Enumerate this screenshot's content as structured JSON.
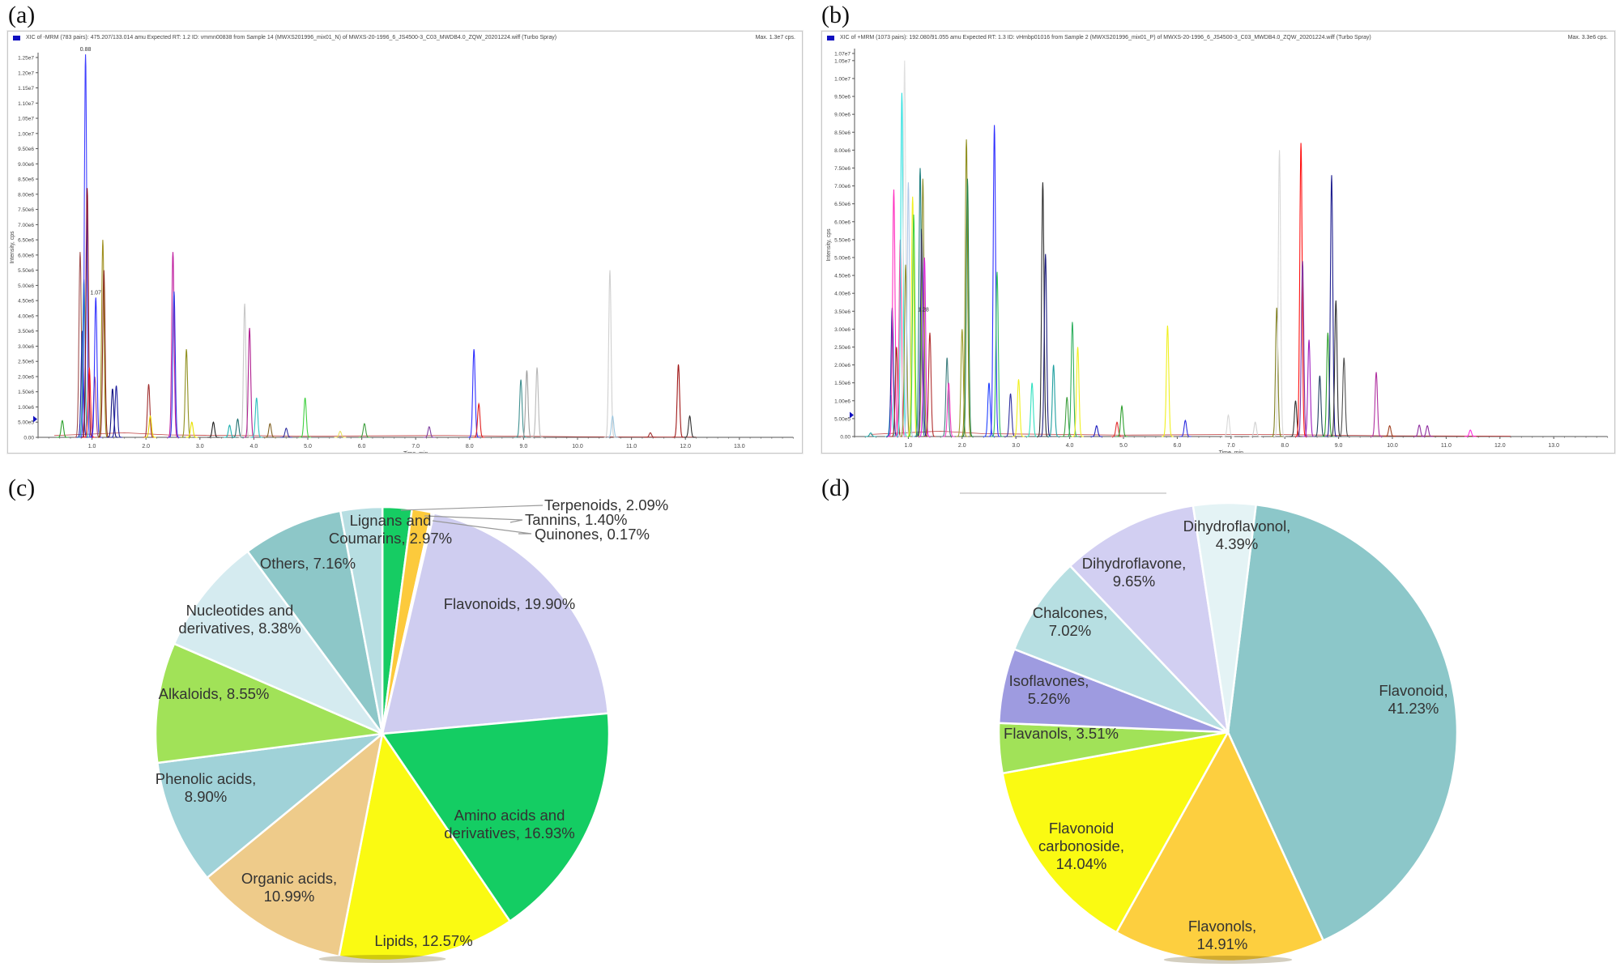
{
  "panel_labels": {
    "a": "(a)",
    "b": "(b)",
    "c": "(c)",
    "d": "(d)"
  },
  "chart_data": [
    {
      "type": "line",
      "panel": "a",
      "header": "XIC of -MRM (783 pairs): 475.207/133.014 amu Expected RT: 1.2 ID: vmmn00838 from Sample 14 (MWXS201996_mix01_N) of MWXS-20-1996_6_JS4500-3_C03_MWDB4.0_ZQW_20201224.wiff (Turbo Spray)",
      "max_label": "Max. 1.3e7 cps.",
      "xlabel": "Time, min",
      "ylabel": "Intensity, cps",
      "xlim": [
        0,
        14
      ],
      "ylim": [
        0,
        12500000
      ],
      "x_ticks": [
        1,
        2,
        3,
        4,
        5,
        6,
        7,
        8,
        9,
        10,
        11,
        12,
        13
      ],
      "x_tick_labels": [
        "1.0",
        "2.0",
        "3.0",
        "4.0",
        "5.0",
        "6.0",
        "7.0",
        "8.0",
        "9.0",
        "10.0",
        "11.0",
        "12.0",
        "13.0"
      ],
      "y_ticks": [
        0,
        500000,
        1000000,
        1500000,
        2000000,
        2500000,
        3000000,
        3500000,
        4000000,
        4500000,
        5000000,
        5500000,
        6000000,
        6500000,
        7000000,
        7500000,
        8000000,
        8500000,
        9000000,
        9500000,
        10000000,
        10500000,
        11000000,
        11500000,
        12000000,
        12500000
      ],
      "y_tick_labels": [
        "0.00",
        "5.00e5",
        "1.00e6",
        "1.50e6",
        "2.00e6",
        "2.50e6",
        "3.00e6",
        "3.50e6",
        "4.00e6",
        "4.50e6",
        "5.00e6",
        "5.50e6",
        "6.00e6",
        "6.50e6",
        "7.00e6",
        "7.50e6",
        "8.00e6",
        "8.50e6",
        "9.00e6",
        "9.50e6",
        "1.00e7",
        "1.05e7",
        "1.10e7",
        "1.15e7",
        "1.20e7",
        "1.25e7"
      ],
      "annotations": [
        {
          "x": 0.88,
          "y": 12600000,
          "text": "0.88"
        },
        {
          "x": 1.07,
          "y": 4600000,
          "text": "1.07"
        }
      ],
      "peaks": [
        {
          "rt": 0.45,
          "y": 550000,
          "color": "#2ca02c"
        },
        {
          "rt": 0.78,
          "y": 6100000,
          "color": "#a05050"
        },
        {
          "rt": 0.82,
          "y": 3500000,
          "color": "#1f1fb0"
        },
        {
          "rt": 0.85,
          "y": 5200000,
          "color": "#20a0a0"
        },
        {
          "rt": 0.88,
          "y": 12600000,
          "color": "#4040ff"
        },
        {
          "rt": 0.91,
          "y": 8200000,
          "color": "#800020"
        },
        {
          "rt": 0.95,
          "y": 2300000,
          "color": "#ff2020"
        },
        {
          "rt": 1.05,
          "y": 2000000,
          "color": "#a04080"
        },
        {
          "rt": 1.07,
          "y": 4600000,
          "color": "#3030ff"
        },
        {
          "rt": 1.2,
          "y": 6500000,
          "color": "#a09020"
        },
        {
          "rt": 1.22,
          "y": 5500000,
          "color": "#8b2a1a"
        },
        {
          "rt": 1.38,
          "y": 1600000,
          "color": "#101080"
        },
        {
          "rt": 1.45,
          "y": 1700000,
          "color": "#2020a0"
        },
        {
          "rt": 2.05,
          "y": 1750000,
          "color": "#a03030"
        },
        {
          "rt": 2.08,
          "y": 700000,
          "color": "#e8d000"
        },
        {
          "rt": 2.5,
          "y": 6100000,
          "color": "#c020a0"
        },
        {
          "rt": 2.52,
          "y": 4800000,
          "color": "#3030e0"
        },
        {
          "rt": 2.75,
          "y": 2900000,
          "color": "#909020"
        },
        {
          "rt": 2.85,
          "y": 500000,
          "color": "#e8e000"
        },
        {
          "rt": 3.25,
          "y": 500000,
          "color": "#202020"
        },
        {
          "rt": 3.55,
          "y": 400000,
          "color": "#20b0b0"
        },
        {
          "rt": 3.7,
          "y": 600000,
          "color": "#207070"
        },
        {
          "rt": 3.83,
          "y": 4400000,
          "color": "#c8c8c8"
        },
        {
          "rt": 3.92,
          "y": 3600000,
          "color": "#b02090"
        },
        {
          "rt": 4.05,
          "y": 1300000,
          "color": "#30c0c0"
        },
        {
          "rt": 4.3,
          "y": 450000,
          "color": "#806020"
        },
        {
          "rt": 4.6,
          "y": 300000,
          "color": "#3030a0"
        },
        {
          "rt": 4.95,
          "y": 1300000,
          "color": "#40d040"
        },
        {
          "rt": 5.6,
          "y": 200000,
          "color": "#e8e060"
        },
        {
          "rt": 6.05,
          "y": 450000,
          "color": "#40a040"
        },
        {
          "rt": 7.25,
          "y": 350000,
          "color": "#8040a0"
        },
        {
          "rt": 8.08,
          "y": 2900000,
          "color": "#3030ff"
        },
        {
          "rt": 8.17,
          "y": 1100000,
          "color": "#e02020"
        },
        {
          "rt": 8.95,
          "y": 1900000,
          "color": "#409090"
        },
        {
          "rt": 9.06,
          "y": 2200000,
          "color": "#a0a0a0"
        },
        {
          "rt": 9.25,
          "y": 2300000,
          "color": "#b8b8b8"
        },
        {
          "rt": 10.6,
          "y": 5500000,
          "color": "#d0d0d0"
        },
        {
          "rt": 10.65,
          "y": 700000,
          "color": "#a0c8e0"
        },
        {
          "rt": 11.35,
          "y": 150000,
          "color": "#a03030"
        },
        {
          "rt": 11.87,
          "y": 2400000,
          "color": "#a01818"
        },
        {
          "rt": 12.08,
          "y": 700000,
          "color": "#303030"
        }
      ]
    },
    {
      "type": "line",
      "panel": "b",
      "header": "XIC of +MRM (1073 pairs): 192.080/91.055 amu Expected RT: 1.3 ID: vHmbp01016 from Sample 2 (MWXS201996_mix01_P) of MWXS-20-1996_6_JS4500-3_C03_MWDB4.0_ZQW_20201224.wiff (Turbo Spray)",
      "max_label": "Max. 3.3e6 cps.",
      "xlabel": "Time, min",
      "ylabel": "Intensity, cps",
      "xlim": [
        0,
        14
      ],
      "ylim": [
        0,
        10700000
      ],
      "x_ticks": [
        1,
        2,
        3,
        4,
        5,
        6,
        7,
        8,
        9,
        10,
        11,
        12,
        13
      ],
      "x_tick_labels": [
        "1.0",
        "2.0",
        "3.0",
        "4.0",
        "5.0",
        "6.0",
        "7.0",
        "8.0",
        "9.0",
        "10.0",
        "11.0",
        "12.0",
        "13.0"
      ],
      "y_ticks": [
        0,
        500000,
        1000000,
        1500000,
        2000000,
        2500000,
        3000000,
        3500000,
        4000000,
        4500000,
        5000000,
        5500000,
        6000000,
        6500000,
        7000000,
        7500000,
        8000000,
        8500000,
        9000000,
        9500000,
        10000000,
        10500000,
        10700000
      ],
      "y_tick_labels": [
        "0.00",
        "5.00e5",
        "1.00e6",
        "1.50e6",
        "2.00e6",
        "2.50e6",
        "3.00e6",
        "3.50e6",
        "4.00e6",
        "4.50e6",
        "5.00e6",
        "5.50e6",
        "6.00e6",
        "6.50e6",
        "7.00e6",
        "7.50e6",
        "8.00e6",
        "8.50e6",
        "9.00e6",
        "9.50e6",
        "1.00e7",
        "1.05e7",
        "1.07e7"
      ],
      "annotations": [
        {
          "x": 1.28,
          "y": 3400000,
          "text": "1.28"
        }
      ],
      "peaks": [
        {
          "rt": 0.3,
          "y": 100000,
          "color": "#20a0a0"
        },
        {
          "rt": 0.68,
          "y": 1150000,
          "color": "#30e0e0"
        },
        {
          "rt": 0.7,
          "y": 3600000,
          "color": "#2020a0"
        },
        {
          "rt": 0.73,
          "y": 6900000,
          "color": "#ff30c0"
        },
        {
          "rt": 0.78,
          "y": 2500000,
          "color": "#a03020"
        },
        {
          "rt": 0.85,
          "y": 5500000,
          "color": "#ff40a0"
        },
        {
          "rt": 0.88,
          "y": 9600000,
          "color": "#30e0e0"
        },
        {
          "rt": 0.93,
          "y": 10500000,
          "color": "#e0e0e0"
        },
        {
          "rt": 0.95,
          "y": 4800000,
          "color": "#909030"
        },
        {
          "rt": 1.0,
          "y": 7100000,
          "color": "#b0c8e8"
        },
        {
          "rt": 1.08,
          "y": 6700000,
          "color": "#f0f020"
        },
        {
          "rt": 1.1,
          "y": 6200000,
          "color": "#40d040"
        },
        {
          "rt": 1.22,
          "y": 7500000,
          "color": "#208080"
        },
        {
          "rt": 1.25,
          "y": 5800000,
          "color": "#101090"
        },
        {
          "rt": 1.27,
          "y": 7200000,
          "color": "#909030"
        },
        {
          "rt": 1.3,
          "y": 5000000,
          "color": "#e020e0"
        },
        {
          "rt": 1.4,
          "y": 2900000,
          "color": "#b03030"
        },
        {
          "rt": 1.72,
          "y": 2200000,
          "color": "#408080"
        },
        {
          "rt": 1.75,
          "y": 1500000,
          "color": "#f040c0"
        },
        {
          "rt": 2.0,
          "y": 3000000,
          "color": "#a0a030"
        },
        {
          "rt": 2.08,
          "y": 8300000,
          "color": "#909020"
        },
        {
          "rt": 2.1,
          "y": 7200000,
          "color": "#208040"
        },
        {
          "rt": 2.5,
          "y": 1500000,
          "color": "#2040ff"
        },
        {
          "rt": 2.6,
          "y": 8700000,
          "color": "#3030ff"
        },
        {
          "rt": 2.65,
          "y": 4600000,
          "color": "#30c060"
        },
        {
          "rt": 2.9,
          "y": 1200000,
          "color": "#3030a0"
        },
        {
          "rt": 3.05,
          "y": 1600000,
          "color": "#f0f020"
        },
        {
          "rt": 3.3,
          "y": 1500000,
          "color": "#30e0c0"
        },
        {
          "rt": 3.5,
          "y": 7100000,
          "color": "#303030"
        },
        {
          "rt": 3.55,
          "y": 5100000,
          "color": "#202080"
        },
        {
          "rt": 3.7,
          "y": 2000000,
          "color": "#20a0a0"
        },
        {
          "rt": 3.95,
          "y": 1100000,
          "color": "#40a040"
        },
        {
          "rt": 4.05,
          "y": 3200000,
          "color": "#30b060"
        },
        {
          "rt": 4.15,
          "y": 2500000,
          "color": "#f0f020"
        },
        {
          "rt": 4.5,
          "y": 300000,
          "color": "#2020c0"
        },
        {
          "rt": 4.88,
          "y": 400000,
          "color": "#e03030"
        },
        {
          "rt": 4.97,
          "y": 850000,
          "color": "#30a030"
        },
        {
          "rt": 5.82,
          "y": 3100000,
          "color": "#f0f020"
        },
        {
          "rt": 6.15,
          "y": 450000,
          "color": "#3030e0"
        },
        {
          "rt": 6.95,
          "y": 600000,
          "color": "#d8d8d8"
        },
        {
          "rt": 7.45,
          "y": 400000,
          "color": "#d0d0d0"
        },
        {
          "rt": 7.85,
          "y": 3600000,
          "color": "#808020"
        },
        {
          "rt": 7.9,
          "y": 8000000,
          "color": "#d8d8d8"
        },
        {
          "rt": 8.2,
          "y": 1000000,
          "color": "#303030"
        },
        {
          "rt": 8.3,
          "y": 8200000,
          "color": "#ff1010"
        },
        {
          "rt": 8.33,
          "y": 4900000,
          "color": "#8030a0"
        },
        {
          "rt": 8.45,
          "y": 2700000,
          "color": "#a020c0"
        },
        {
          "rt": 8.65,
          "y": 1700000,
          "color": "#204060"
        },
        {
          "rt": 8.8,
          "y": 2900000,
          "color": "#30a030"
        },
        {
          "rt": 8.87,
          "y": 7300000,
          "color": "#202090"
        },
        {
          "rt": 8.95,
          "y": 3800000,
          "color": "#303030"
        },
        {
          "rt": 9.1,
          "y": 2200000,
          "color": "#505050"
        },
        {
          "rt": 9.7,
          "y": 1800000,
          "color": "#b030a0"
        },
        {
          "rt": 9.95,
          "y": 300000,
          "color": "#a04020"
        },
        {
          "rt": 10.5,
          "y": 320000,
          "color": "#9030a0"
        },
        {
          "rt": 10.65,
          "y": 300000,
          "color": "#9030a0"
        },
        {
          "rt": 11.45,
          "y": 180000,
          "color": "#ff30e0"
        }
      ]
    },
    {
      "type": "pie",
      "panel": "c",
      "start_angle_deg": 0,
      "direction": "clockwise",
      "slices": [
        {
          "label": "Terpenoids, 2.09%",
          "name": "Terpenoids",
          "value": 2.09,
          "color": "#16cc63"
        },
        {
          "label": "Tannins, 1.40%",
          "name": "Tannins",
          "value": 1.4,
          "color": "#fcca3c"
        },
        {
          "label": "Quinones, 0.17%",
          "name": "Quinones",
          "value": 0.17,
          "color": "#e8e4f8"
        },
        {
          "label": "Flavonoids, 19.90%",
          "name": "Flavonoids",
          "value": 19.9,
          "color": "#cfcdf0"
        },
        {
          "label": "Amino acids and|derivatives, 16.93%",
          "name": "Amino acids and derivatives",
          "value": 16.93,
          "color": "#14cd63"
        },
        {
          "label": "Lipids, 12.57%",
          "name": "Lipids",
          "value": 12.57,
          "color": "#fafa12"
        },
        {
          "label": "Organic acids,|10.99%",
          "name": "Organic acids",
          "value": 10.99,
          "color": "#eecb8a"
        },
        {
          "label": "Phenolic acids,|8.90%",
          "name": "Phenolic acids",
          "value": 8.9,
          "color": "#a0d2d8"
        },
        {
          "label": "Alkaloids, 8.55%",
          "name": "Alkaloids",
          "value": 8.55,
          "color": "#a1e258"
        },
        {
          "label": "Nucleotides and|derivatives, 8.38%",
          "name": "Nucleotides and derivatives",
          "value": 8.38,
          "color": "#d5ebf0"
        },
        {
          "label": "Others, 7.16%",
          "name": "Others",
          "value": 7.16,
          "color": "#8dc7c8"
        },
        {
          "label": "Lignans and|Coumarins, 2.97%",
          "name": "Lignans and Coumarins",
          "value": 2.97,
          "color": "#b7dee2"
        }
      ]
    },
    {
      "type": "pie",
      "panel": "d",
      "start_angle_deg": 7,
      "direction": "clockwise",
      "slices": [
        {
          "label": "Flavonoid,|41.23%",
          "name": "Flavonoid",
          "value": 41.23,
          "color": "#8cc7c9"
        },
        {
          "label": "Flavonols,|14.91%",
          "name": "Flavonols",
          "value": 14.91,
          "color": "#fdcf3f"
        },
        {
          "label": "Flavonoid|carbonoside,|14.04%",
          "name": "Flavonoid carbonoside",
          "value": 14.04,
          "color": "#fafa12"
        },
        {
          "label": "Flavanols, 3.51%",
          "name": "Flavanols",
          "value": 3.51,
          "color": "#a1e258"
        },
        {
          "label": "Isoflavones,|5.26%",
          "name": "Isoflavones",
          "value": 5.26,
          "color": "#9e9be0"
        },
        {
          "label": "Chalcones,|7.02%",
          "name": "Chalcones",
          "value": 7.02,
          "color": "#b7dfe2"
        },
        {
          "label": "Dihydroflavone,|9.65%",
          "name": "Dihydroflavone",
          "value": 9.65,
          "color": "#d2cff2"
        },
        {
          "label": "Dihydroflavonol,|4.39%",
          "name": "Dihydroflavonol",
          "value": 4.39,
          "color": "#e4f3f5"
        }
      ]
    }
  ]
}
